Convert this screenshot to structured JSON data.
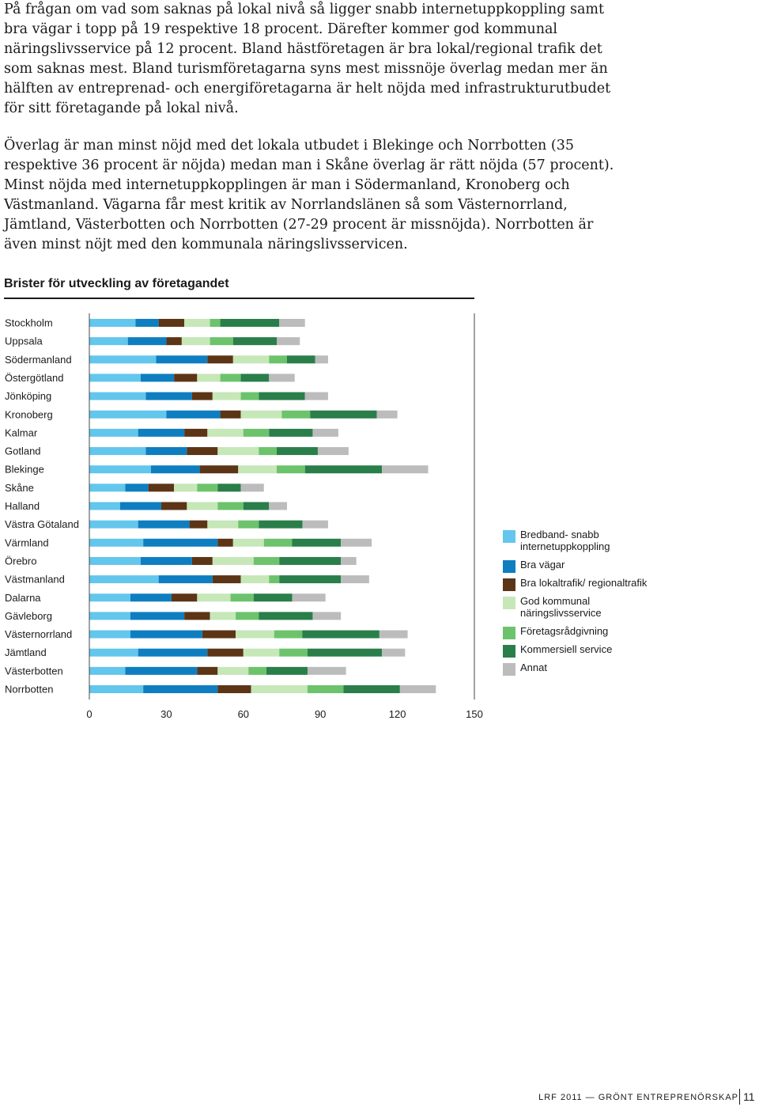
{
  "paragraphs": [
    "På frågan om vad som saknas på lokal nivå så ligger snabb internetuppkoppling samt bra vägar i topp på 19 respektive 18 procent. Därefter kommer god kommunal näringslivsservice på 12 procent. Bland hästföretagen är bra lokal/regional trafik det som saknas mest. Bland turismföretagarna syns mest missnöje överlag medan mer än hälften av entreprenad- och energiföretagarna är helt nöjda med infrastrukturutbudet för sitt företagande på lokal nivå.",
    "Överlag är man minst nöjd med det lokala utbudet i Blekinge och Norrbotten (35 respektive 36 procent är nöjda) medan man i Skåne överlag är rätt nöjda (57 procent). Minst nöjda med internetuppkopplingen är man i Södermanland, Kronoberg och Västmanland. Vägarna får mest kritik av Norrlandslänen så som Västernorrland, Jämtland, Västerbotten och Norrbotten (27-29 procent är missnöjda). Norrbotten är även minst nöjt med den kommunala näringslivsservicen."
  ],
  "chart_data": {
    "type": "bar",
    "orientation": "horizontal",
    "stacked": true,
    "title": "Brister för utveckling av företagandet",
    "categories": [
      "Stockholm",
      "Uppsala",
      "Södermanland",
      "Östergötland",
      "Jönköping",
      "Kronoberg",
      "Kalmar",
      "Gotland",
      "Blekinge",
      "Skåne",
      "Halland",
      "Västra Götaland",
      "Värmland",
      "Örebro",
      "Västmanland",
      "Dalarna",
      "Gävleborg",
      "Västernorrland",
      "Jämtland",
      "Västerbotten",
      "Norrbotten"
    ],
    "xlim": [
      0,
      150
    ],
    "xticks": [
      0,
      30,
      60,
      90,
      120,
      150
    ],
    "grid": false,
    "legend_position": "right",
    "series": [
      {
        "name": "Bredband- snabb internetuppkoppling",
        "color": "#63c6ec",
        "values": [
          18,
          15,
          26,
          20,
          22,
          30,
          19,
          22,
          24,
          14,
          12,
          19,
          21,
          20,
          27,
          16,
          16,
          16,
          19,
          14,
          21
        ]
      },
      {
        "name": "Bra vägar",
        "color": "#0e7ec0",
        "values": [
          9,
          15,
          20,
          13,
          18,
          21,
          18,
          16,
          19,
          9,
          16,
          20,
          29,
          20,
          21,
          16,
          21,
          28,
          27,
          28,
          29
        ]
      },
      {
        "name": "Bra lokaltrafik/ regionaltrafik",
        "color": "#5c3516",
        "values": [
          10,
          6,
          10,
          9,
          8,
          8,
          9,
          12,
          15,
          10,
          10,
          7,
          6,
          8,
          11,
          10,
          10,
          13,
          14,
          8,
          13
        ]
      },
      {
        "name": "God kommunal näringslivsservice",
        "color": "#c6e7b8",
        "values": [
          10,
          11,
          14,
          9,
          11,
          16,
          14,
          16,
          15,
          9,
          12,
          12,
          12,
          16,
          11,
          13,
          10,
          15,
          14,
          12,
          22
        ]
      },
      {
        "name": "Företagsrådgivning",
        "color": "#6cc36c",
        "values": [
          4,
          9,
          7,
          8,
          7,
          11,
          10,
          7,
          11,
          8,
          10,
          8,
          11,
          10,
          4,
          9,
          9,
          11,
          11,
          7,
          14
        ]
      },
      {
        "name": "Kommersiell service",
        "color": "#2a7e4a",
        "values": [
          23,
          17,
          11,
          11,
          18,
          26,
          17,
          16,
          30,
          9,
          10,
          17,
          19,
          24,
          24,
          15,
          21,
          30,
          29,
          16,
          22
        ]
      },
      {
        "name": "Annat",
        "color": "#bcbcbc",
        "values": [
          10,
          9,
          5,
          10,
          9,
          8,
          10,
          12,
          18,
          9,
          7,
          10,
          12,
          6,
          11,
          13,
          11,
          11,
          9,
          15,
          14
        ]
      }
    ]
  },
  "footer": {
    "text": "LRF 2011 — GRÖNT ENTREPRENÖRSKAP",
    "page": "11"
  }
}
